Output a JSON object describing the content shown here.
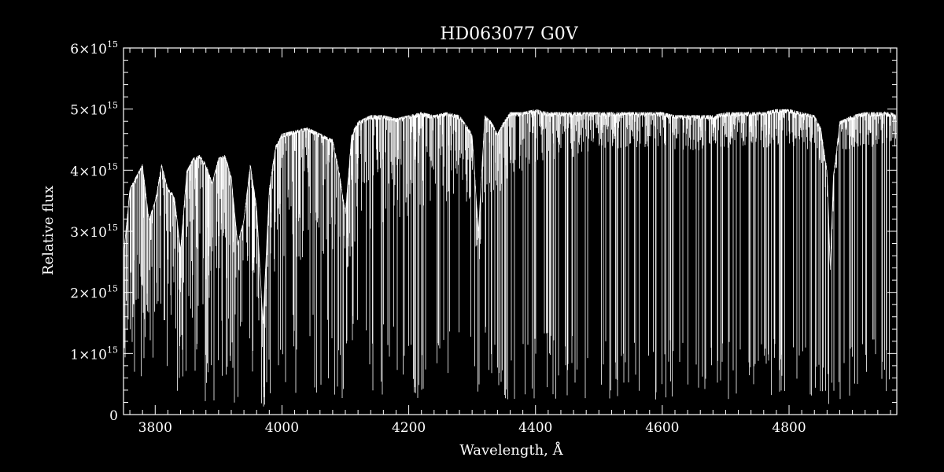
{
  "chart_data": {
    "type": "line",
    "title": "HD063077   G0V",
    "xlabel": "Wavelength, Å",
    "ylabel": "Relative flux",
    "xlim": [
      3750,
      4970
    ],
    "ylim": [
      0,
      6000000000000000.0
    ],
    "x_ticks": [
      3800,
      4000,
      4200,
      4400,
      4600,
      4800
    ],
    "x_tick_labels": [
      "3800",
      "4000",
      "4200",
      "4400",
      "4600",
      "4800"
    ],
    "y_ticks": [
      0,
      1000000000000000.0,
      2000000000000000.0,
      3000000000000000.0,
      4000000000000000.0,
      5000000000000000.0,
      6000000000000000.0
    ],
    "y_tick_labels": [
      {
        "mantissa": "0",
        "base": "",
        "exp": ""
      },
      {
        "mantissa": "1",
        "base": "×10",
        "exp": "15"
      },
      {
        "mantissa": "2",
        "base": "×10",
        "exp": "15"
      },
      {
        "mantissa": "3",
        "base": "×10",
        "exp": "15"
      },
      {
        "mantissa": "4",
        "base": "×10",
        "exp": "15"
      },
      {
        "mantissa": "5",
        "base": "×10",
        "exp": "15"
      },
      {
        "mantissa": "6",
        "base": "×10",
        "exp": "15"
      }
    ],
    "colors": {
      "background": "#000000",
      "foreground": "#ffffff"
    },
    "series": [
      {
        "x": [
          3750,
          3760,
          3770,
          3780,
          3790,
          3800,
          3810,
          3820,
          3830,
          3840,
          3850,
          3860,
          3870,
          3880,
          3890,
          3900,
          3910,
          3920,
          3930,
          3940,
          3950,
          3960,
          3970,
          3980,
          3990,
          4000,
          4020,
          4040,
          4060,
          4080,
          4090,
          4100,
          4110,
          4120,
          4140,
          4160,
          4180,
          4200,
          4220,
          4240,
          4260,
          4280,
          4300,
          4310,
          4320,
          4330,
          4340,
          4350,
          4360,
          4380,
          4400,
          4420,
          4440,
          4460,
          4480,
          4500,
          4520,
          4540,
          4560,
          4580,
          4600,
          4620,
          4640,
          4660,
          4680,
          4700,
          4720,
          4740,
          4760,
          4780,
          4800,
          4820,
          4840,
          4850,
          4860,
          4865,
          4870,
          4880,
          4900,
          4920,
          4940,
          4960,
          4970
        ],
        "y": [
          2600000000000000.0,
          3700000000000000.0,
          3900000000000000.0,
          4100000000000000.0,
          3200000000000000.0,
          3500000000000000.0,
          4100000000000000.0,
          3700000000000000.0,
          3600000000000000.0,
          2700000000000000.0,
          4000000000000000.0,
          4200000000000000.0,
          4250000000000000.0,
          4100000000000000.0,
          3800000000000000.0,
          4200000000000000.0,
          4250000000000000.0,
          3900000000000000.0,
          2800000000000000.0,
          3200000000000000.0,
          4100000000000000.0,
          3400000000000000.0,
          1500000000000000.0,
          3700000000000000.0,
          4400000000000000.0,
          4600000000000000.0,
          4650000000000000.0,
          4700000000000000.0,
          4600000000000000.0,
          4500000000000000.0,
          4000000000000000.0,
          3300000000000000.0,
          4600000000000000.0,
          4800000000000000.0,
          4900000000000000.0,
          4900000000000000.0,
          4850000000000000.0,
          4900000000000000.0,
          4950000000000000.0,
          4900000000000000.0,
          4950000000000000.0,
          4900000000000000.0,
          4600000000000000.0,
          3000000000000000.0,
          4900000000000000.0,
          4800000000000000.0,
          4600000000000000.0,
          4800000000000000.0,
          4950000000000000.0,
          4950000000000000.0,
          5000000000000000.0,
          4950000000000000.0,
          4950000000000000.0,
          4950000000000000.0,
          4950000000000000.0,
          4950000000000000.0,
          4950000000000000.0,
          4950000000000000.0,
          4950000000000000.0,
          4950000000000000.0,
          4950000000000000.0,
          4900000000000000.0,
          4900000000000000.0,
          4900000000000000.0,
          4900000000000000.0,
          4950000000000000.0,
          4950000000000000.0,
          4950000000000000.0,
          4950000000000000.0,
          5000000000000000.0,
          5000000000000000.0,
          4950000000000000.0,
          4900000000000000.0,
          4700000000000000.0,
          4000000000000000.0,
          2400000000000000.0,
          3900000000000000.0,
          4800000000000000.0,
          4900000000000000.0,
          4950000000000000.0,
          4950000000000000.0,
          4950000000000000.0,
          4900000000000000.0
        ]
      }
    ]
  }
}
